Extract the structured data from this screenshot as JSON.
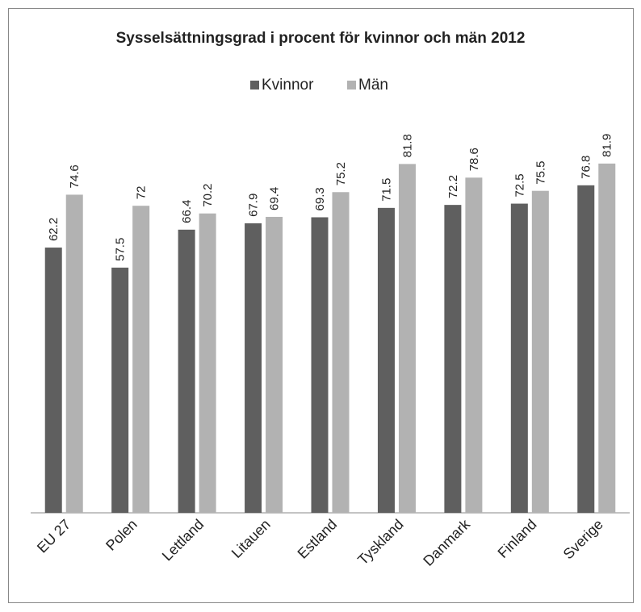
{
  "chart_data": {
    "type": "bar",
    "title": "Sysselsättningsgrad i procent för kvinnor och män 2012",
    "categories": [
      "EU 27",
      "Polen",
      "Lettland",
      "Litauen",
      "Estland",
      "Tyskland",
      "Danmark",
      "Finland",
      "Sverige"
    ],
    "series": [
      {
        "name": "Kvinnor",
        "color": "#5f5f5f",
        "values": [
          62.2,
          57.5,
          66.4,
          67.9,
          69.3,
          71.5,
          72.2,
          72.5,
          76.8
        ]
      },
      {
        "name": "Män",
        "color": "#b2b2b2",
        "values": [
          74.6,
          72,
          70.2,
          69.4,
          75.2,
          81.8,
          78.6,
          75.5,
          81.9
        ]
      }
    ],
    "ylim": [
      0,
      90
    ],
    "legend": "top"
  }
}
